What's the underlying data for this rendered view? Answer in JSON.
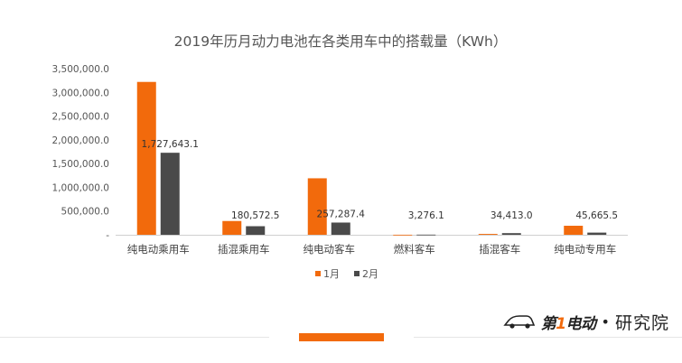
{
  "chart_data": {
    "type": "bar",
    "title": "2019年历月动力电池在各类用车中的搭载量（KWh）",
    "categories": [
      "纯电动乘用车",
      "插混乘用车",
      "纯电动客车",
      "燃料客车",
      "插混客车",
      "纯电动专用车"
    ],
    "series": [
      {
        "name": "1月",
        "color": "#f26a0c",
        "values": [
          3220000,
          290000,
          1190000,
          1200,
          18000,
          190000
        ],
        "labels": [
          "",
          "",
          "",
          "",
          "",
          ""
        ]
      },
      {
        "name": "2月",
        "color": "#4a4a4a",
        "values": [
          1727643.1,
          180572.5,
          257287.4,
          3276.1,
          34413.0,
          45665.5
        ],
        "labels": [
          "1,727,643.1",
          "180,572.5",
          "257,287.4",
          "3,276.1",
          "34,413.0",
          "45,665.5"
        ]
      }
    ],
    "ylim": [
      0,
      3500000
    ],
    "yticks": [
      "-",
      "500,000.0",
      "1,000,000.0",
      "1,500,000.0",
      "2,000,000.0",
      "2,500,000.0",
      "3,000,000.0",
      "3,500,000.0"
    ],
    "legend_position": "bottom",
    "grid": false
  },
  "brand": {
    "logo_text_a": "第",
    "logo_text_b": "1",
    "logo_text_c": "电动",
    "separator": "•",
    "research": "研究院"
  }
}
